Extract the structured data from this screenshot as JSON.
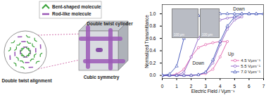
{
  "chart_data": {
    "type": "line",
    "xlabel": "Electric Field / Vμm⁻¹",
    "ylabel": "Normalized Transmittance",
    "xlim": [
      0,
      7
    ],
    "xticks": [
      0,
      1,
      2,
      3,
      4,
      5,
      6,
      7
    ],
    "ylim": [
      -0.05,
      1.15
    ],
    "yticks": [
      {
        "value": 0,
        "label": "0.0"
      },
      {
        "value": 0.2,
        "label": "0.2"
      },
      {
        "value": 0.4,
        "label": "0.4"
      },
      {
        "value": 0.6,
        "label": "0.6"
      },
      {
        "value": 0.8,
        "label": "0.8"
      },
      {
        "value": 1.0,
        "label": "1.0"
      }
    ],
    "legend": "lower right",
    "series": [
      {
        "name": "4.5 Vμm⁻¹",
        "color": "#e05aa8",
        "marker": "circle",
        "x": [
          0,
          0.5,
          1,
          1.5,
          2,
          2.5,
          3,
          3.5,
          4,
          4.5,
          4,
          3.5,
          3,
          2.5,
          2,
          1.5,
          1,
          0.5,
          0
        ],
        "values": [
          0,
          0,
          0,
          0,
          0,
          0.01,
          0.03,
          0.1,
          0.3,
          0.55,
          0.55,
          0.53,
          0.5,
          0.45,
          0.3,
          0.1,
          0.02,
          0,
          0
        ]
      },
      {
        "name": "5.5 Vμm⁻¹",
        "color": "#8a5cc4",
        "marker": "circle",
        "x": [
          0,
          0.5,
          1,
          1.5,
          2,
          2.5,
          3,
          3.5,
          4,
          4.5,
          5,
          5.5,
          5,
          4.5,
          4,
          3.5,
          3,
          2.5,
          2,
          1.5,
          1,
          0.5,
          0
        ],
        "values": [
          0,
          0,
          0,
          0,
          0,
          0.01,
          0.05,
          0.2,
          0.5,
          0.75,
          0.9,
          0.95,
          0.95,
          0.93,
          0.9,
          0.88,
          0.8,
          0.6,
          0.3,
          0.05,
          0,
          0,
          0
        ]
      },
      {
        "name": "7.0 Vμm⁻¹",
        "color": "#3c4fb5",
        "marker": "triangle",
        "x": [
          0,
          0.5,
          1,
          1.5,
          2,
          2.5,
          3,
          3.5,
          4,
          4.5,
          5,
          5.5,
          6,
          6.5,
          7,
          6.5,
          6,
          5.5,
          5,
          4.5,
          4,
          3.5,
          3,
          2.5,
          2,
          1.5,
          1,
          0.5,
          0
        ],
        "values": [
          0,
          0,
          0,
          0,
          0,
          0.01,
          0.05,
          0.25,
          0.55,
          0.8,
          0.95,
          1,
          1,
          1,
          1,
          1,
          1,
          1,
          1,
          1,
          1,
          0.99,
          0.98,
          0.97,
          0.9,
          0.6,
          0.15,
          0.02,
          0
        ]
      }
    ],
    "annotations": [
      {
        "text": "Up",
        "x": 4.75,
        "y": 0.35
      },
      {
        "text": "Down",
        "x": 2.5,
        "y": 0.2
      },
      {
        "text": "Down",
        "x": 5.3,
        "y": 1.08
      }
    ],
    "insets": [
      {
        "label": "100 μm"
      },
      {
        "label": "100 μm"
      }
    ]
  },
  "diagram": {
    "legend": [
      {
        "label": "Bent-shaped molecule",
        "color": "#3aa23a"
      },
      {
        "label": "Rod-like molecule",
        "color": "#9b59b6"
      }
    ],
    "alignment_label": "Double twist alignment",
    "cylinder_label": "Double twist cylinder",
    "cube_label": "Cubic symmetry"
  }
}
